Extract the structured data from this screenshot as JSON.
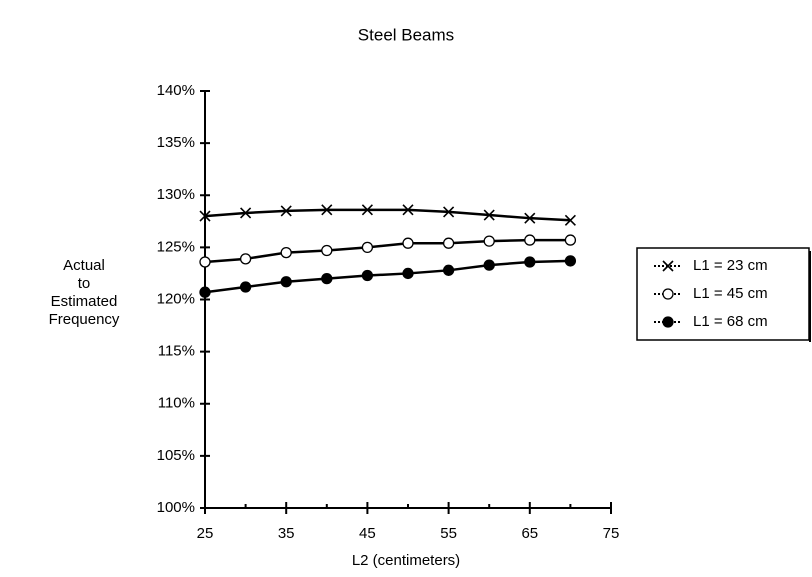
{
  "chart_data": {
    "type": "line",
    "title": "Steel Beams",
    "xlabel": "L2 (centimeters)",
    "ylabel": [
      "Actual",
      "to",
      "Estimated",
      "Frequency"
    ],
    "x": [
      25,
      30,
      35,
      40,
      45,
      50,
      55,
      60,
      65,
      70
    ],
    "series": [
      {
        "name": "L1 = 23 cm",
        "color": "#000000",
        "marker": "x",
        "values": [
          128,
          128.3,
          128.5,
          128.6,
          128.6,
          128.6,
          128.4,
          128.1,
          127.8,
          127.6
        ]
      },
      {
        "name": "L1 = 45 cm",
        "color": "#000000",
        "marker": "open-circle",
        "values": [
          123.6,
          123.9,
          124.5,
          124.7,
          125,
          125.4,
          125.4,
          125.6,
          125.7,
          125.7
        ]
      },
      {
        "name": "L1 = 68 cm",
        "color": "#000000",
        "marker": "filled-circle",
        "values": [
          120.7,
          121.2,
          121.7,
          122,
          122.3,
          122.5,
          122.8,
          123.3,
          123.6,
          123.7
        ]
      }
    ],
    "xlim": [
      25,
      75
    ],
    "xticks": [
      25,
      35,
      45,
      55,
      65,
      75
    ],
    "xminorticks": [
      30,
      40,
      50,
      60,
      70
    ],
    "ylim": [
      100,
      140
    ],
    "yticks": [
      {
        "value": 100,
        "label": "100%"
      },
      {
        "value": 105,
        "label": "105%"
      },
      {
        "value": 110,
        "label": "110%"
      },
      {
        "value": 115,
        "label": "115%"
      },
      {
        "value": 120,
        "label": "120%"
      },
      {
        "value": 125,
        "label": "125%"
      },
      {
        "value": 130,
        "label": "130%"
      },
      {
        "value": 135,
        "label": "135%"
      },
      {
        "value": 140,
        "label": "140%"
      }
    ],
    "grid": false,
    "legend": "right"
  }
}
